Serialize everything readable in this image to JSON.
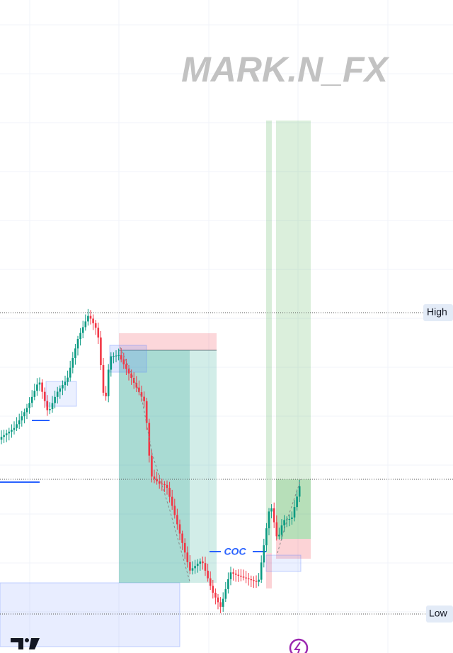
{
  "watermark": "MARK.N_FX",
  "levels": {
    "high": "High",
    "low": "Low"
  },
  "annotation": "COC"
}
